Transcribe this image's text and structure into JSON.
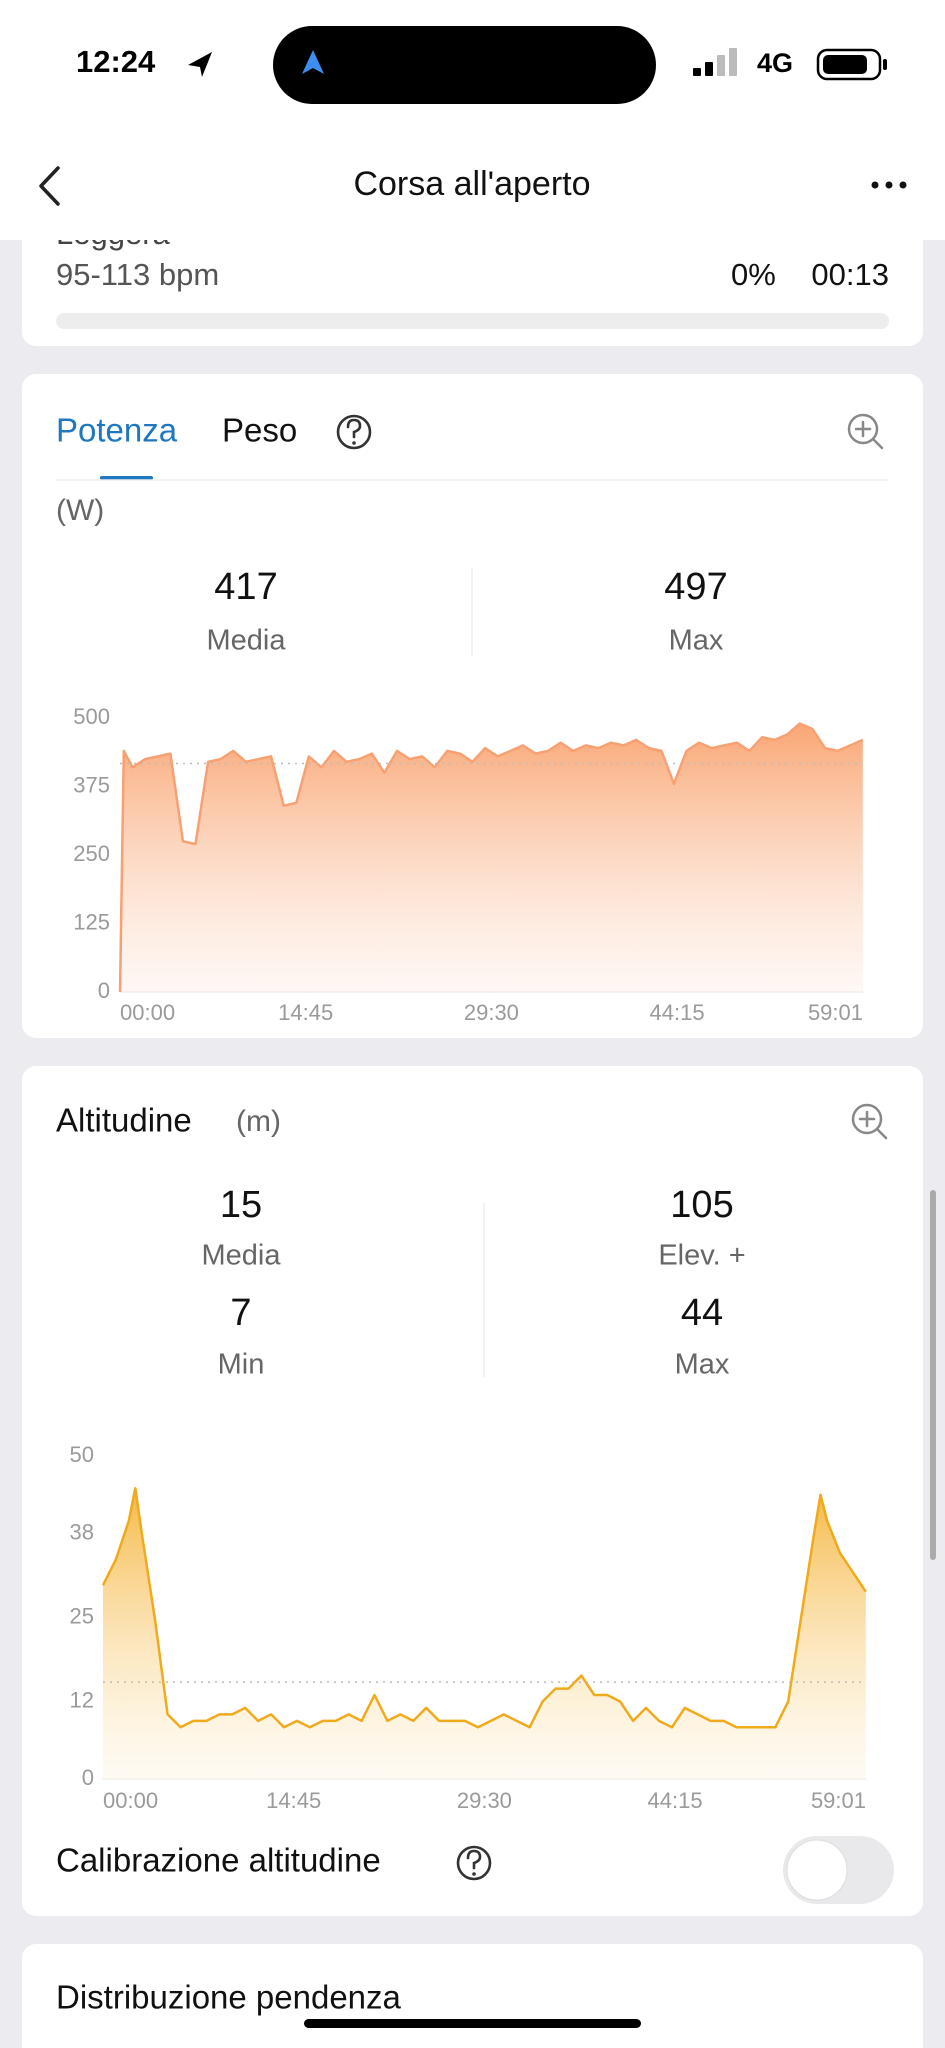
{
  "status_bar": {
    "time": "12:24",
    "network": "4G"
  },
  "nav": {
    "title": "Corsa all'aperto"
  },
  "zone_card": {
    "name": "Leggera",
    "range": "95-113 bpm",
    "percent": "0%",
    "duration": "00:13"
  },
  "power_card": {
    "tabs": [
      "Potenza",
      "Peso"
    ],
    "unit": "(W)",
    "stats": [
      {
        "value": 417,
        "label": "Media"
      },
      {
        "value": 497,
        "label": "Max"
      }
    ]
  },
  "altitude_card": {
    "title": "Altitudine",
    "unit": "(m)",
    "stats": [
      {
        "value": 15,
        "label": "Media"
      },
      {
        "value": 105,
        "label": "Elev. +"
      },
      {
        "value": 7,
        "label": "Min"
      },
      {
        "value": 44,
        "label": "Max"
      }
    ],
    "calibration_label": "Calibrazione altitudine"
  },
  "slope_card": {
    "title": "Distribuzione pendenza"
  },
  "chart_data": [
    {
      "type": "line",
      "x": [
        0,
        0.3,
        1,
        2,
        3,
        4,
        5,
        6,
        7,
        8,
        9,
        10,
        11,
        12,
        13,
        14,
        15,
        16,
        17,
        18,
        19,
        20,
        21,
        22,
        23,
        24,
        25,
        26,
        27,
        28,
        29,
        30,
        31,
        32,
        33,
        34,
        35,
        36,
        37,
        38,
        39,
        40,
        41,
        42,
        43,
        44,
        45,
        46,
        47,
        48,
        49,
        50,
        51,
        52,
        53,
        54,
        55,
        56,
        57,
        58,
        59
      ],
      "series": [
        {
          "color": "#f7a173",
          "values": [
            0,
            440,
            410,
            425,
            430,
            435,
            275,
            270,
            420,
            425,
            440,
            420,
            425,
            430,
            340,
            345,
            430,
            410,
            440,
            420,
            425,
            435,
            400,
            440,
            425,
            430,
            410,
            440,
            435,
            420,
            445,
            430,
            440,
            450,
            435,
            440,
            455,
            440,
            450,
            445,
            455,
            450,
            460,
            445,
            440,
            380,
            440,
            455,
            445,
            450,
            455,
            440,
            465,
            460,
            470,
            490,
            480,
            445,
            440,
            450,
            460
          ]
        }
      ],
      "xlim": [
        0,
        59.0167
      ],
      "xticks": [
        {
          "value": 0,
          "label": "00:00"
        },
        {
          "value": 14.75,
          "label": "14:45"
        },
        {
          "value": 29.5,
          "label": "29:30"
        },
        {
          "value": 44.25,
          "label": "44:15"
        },
        {
          "value": 59.0167,
          "label": "59:01"
        }
      ],
      "ylim": [
        0,
        500
      ],
      "yticks": [
        0,
        125,
        250,
        375,
        500
      ],
      "grid": false
    },
    {
      "type": "line",
      "x": [
        0,
        1,
        2,
        2.5,
        3,
        4,
        5,
        6,
        7,
        8,
        9,
        10,
        11,
        12,
        13,
        14,
        15,
        16,
        17,
        18,
        19,
        20,
        21,
        22,
        23,
        24,
        25,
        26,
        27,
        28,
        29,
        30,
        31,
        32,
        33,
        34,
        35,
        36,
        37,
        38,
        39,
        40,
        41,
        42,
        43,
        44,
        45,
        46,
        47,
        48,
        49,
        50,
        51,
        52,
        53,
        54,
        55,
        55.5,
        56,
        57,
        58,
        59
      ],
      "series": [
        {
          "color": "#f0aa1c",
          "values": [
            30,
            34,
            40,
            45,
            38,
            25,
            10,
            8,
            9,
            9,
            10,
            10,
            11,
            9,
            10,
            8,
            9,
            8,
            9,
            9,
            10,
            9,
            13,
            9,
            10,
            9,
            11,
            9,
            9,
            9,
            8,
            9,
            10,
            9,
            8,
            12,
            14,
            14,
            16,
            13,
            13,
            12,
            9,
            11,
            9,
            8,
            11,
            10,
            9,
            9,
            8,
            8,
            8,
            8,
            12,
            25,
            38,
            44,
            40,
            35,
            32,
            29
          ]
        }
      ],
      "xlim": [
        0,
        59.0167
      ],
      "xticks": [
        {
          "value": 0,
          "label": "00:00"
        },
        {
          "value": 14.75,
          "label": "14:45"
        },
        {
          "value": 29.5,
          "label": "29:30"
        },
        {
          "value": 44.25,
          "label": "44:15"
        },
        {
          "value": 59.0167,
          "label": "59:01"
        }
      ],
      "ylim": [
        0,
        50
      ],
      "yticks": [
        0,
        12,
        25,
        38,
        50
      ],
      "grid": false
    }
  ]
}
